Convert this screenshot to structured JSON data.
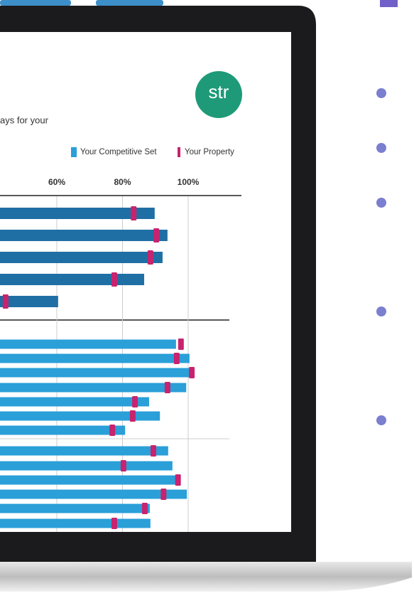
{
  "screen": {
    "subtitle_fragment": "ays for your",
    "logo": "str"
  },
  "chart_data": {
    "type": "hbar-marker",
    "xlim": [
      0,
      120
    ],
    "xticks": [
      {
        "value": 60,
        "label": "60%"
      },
      {
        "value": 80,
        "label": "80%"
      },
      {
        "value": 100,
        "label": "100%"
      }
    ],
    "grid": true,
    "series": [
      {
        "name": "Your Competitive Set",
        "color": "#2a9fd8",
        "colors": [
          "#1f6fa5",
          "#1f6fa5",
          "#1f6fa5",
          "#1f6fa5",
          "#1f6fa5",
          "#2a9fd8",
          "#2a9fd8",
          "#2a9fd8",
          "#2a9fd8",
          "#2a9fd8",
          "#2a9fd8",
          "#2a9fd8",
          "#2a9fd8",
          "#2a9fd8",
          "#2a9fd8",
          "#2a9fd8",
          "#2a9fd8",
          "#2a9fd8"
        ],
        "values": [
          89.8,
          93.7,
          92.2,
          86.6,
          60.4,
          96.3,
          100.4,
          101.1,
          99.4,
          88.1,
          91.4,
          80.8,
          93.9,
          95.2,
          97.6,
          99.6,
          88.3,
          88.5
        ]
      },
      {
        "name": "Your Property",
        "color": "#c8236e",
        "values": [
          83.4,
          90.3,
          88.5,
          77.5,
          44.4,
          97.8,
          96.5,
          101.1,
          93.7,
          83.8,
          83.1,
          76.9,
          89.4,
          80.3,
          96.9,
          92.5,
          86.8,
          77.5
        ]
      }
    ]
  }
}
